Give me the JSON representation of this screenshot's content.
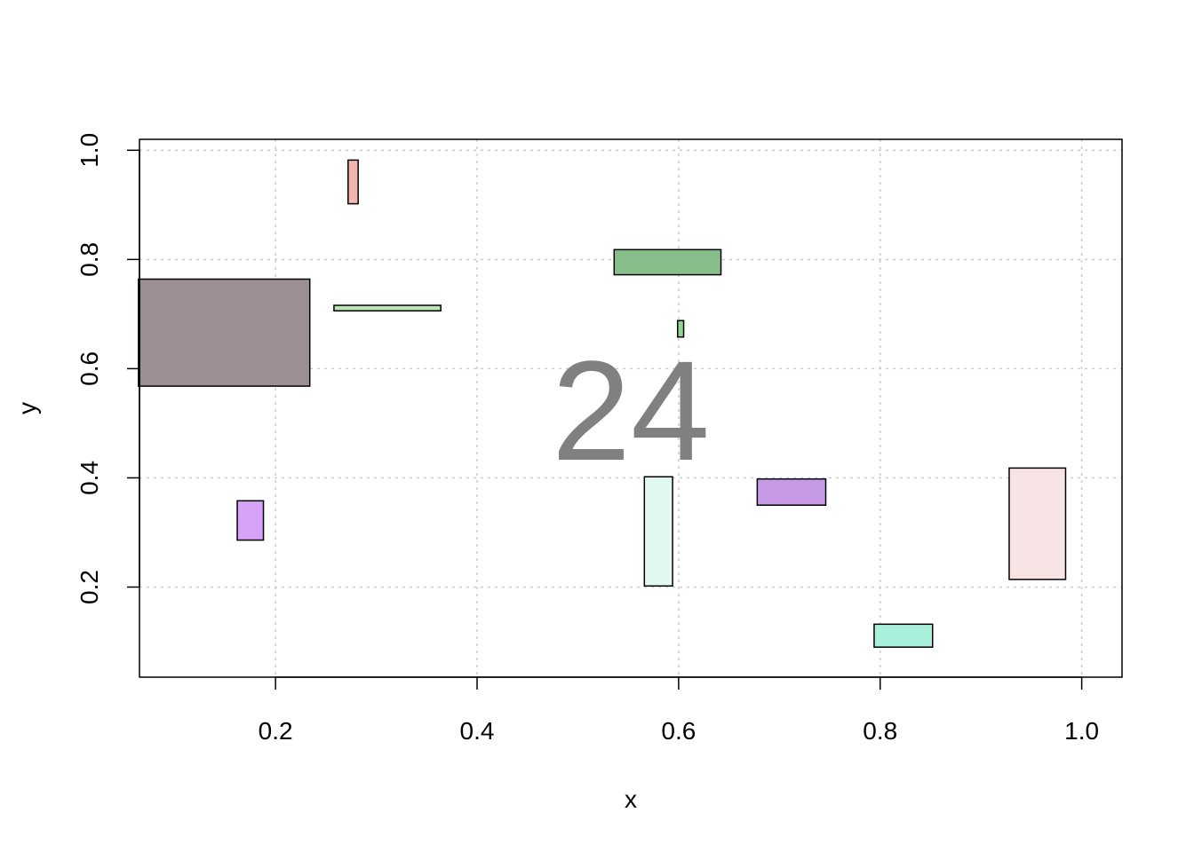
{
  "chart_data": {
    "type": "rect",
    "title": "",
    "xlabel": "x",
    "ylabel": "y",
    "xlim": [
      0.065,
      1.04
    ],
    "ylim": [
      0.035,
      1.02
    ],
    "xticks": [
      0.2,
      0.4,
      0.6,
      0.8,
      1.0
    ],
    "yticks": [
      0.2,
      0.4,
      0.6,
      0.8,
      1.0
    ],
    "xtick_labels": [
      "0.2",
      "0.4",
      "0.6",
      "0.8",
      "1.0"
    ],
    "ytick_labels": [
      "0.2",
      "0.4",
      "0.6",
      "0.8",
      "1.0"
    ],
    "grid": true,
    "overlay_text": "24",
    "rects": [
      {
        "x0": 0.272,
        "x1": 0.282,
        "y0": 0.902,
        "y1": 0.982,
        "color": "#f2b6b0"
      },
      {
        "x0": 0.536,
        "x1": 0.642,
        "y0": 0.772,
        "y1": 0.818,
        "color": "#86bf8c"
      },
      {
        "x0": 0.064,
        "x1": 0.234,
        "y0": 0.568,
        "y1": 0.764,
        "color": "#9c8f94"
      },
      {
        "x0": 0.258,
        "x1": 0.364,
        "y0": 0.706,
        "y1": 0.716,
        "color": "#bde6b7"
      },
      {
        "x0": 0.599,
        "x1": 0.605,
        "y0": 0.658,
        "y1": 0.688,
        "color": "#8fd694"
      },
      {
        "x0": 0.162,
        "x1": 0.188,
        "y0": 0.286,
        "y1": 0.358,
        "color": "#d6a3f7"
      },
      {
        "x0": 0.566,
        "x1": 0.594,
        "y0": 0.202,
        "y1": 0.402,
        "color": "#e1f7ef"
      },
      {
        "x0": 0.678,
        "x1": 0.746,
        "y0": 0.35,
        "y1": 0.398,
        "color": "#c79ae6"
      },
      {
        "x0": 0.928,
        "x1": 0.984,
        "y0": 0.214,
        "y1": 0.418,
        "color": "#f8e4e5"
      },
      {
        "x0": 0.794,
        "x1": 0.852,
        "y0": 0.09,
        "y1": 0.132,
        "color": "#a9f0dc"
      }
    ]
  }
}
